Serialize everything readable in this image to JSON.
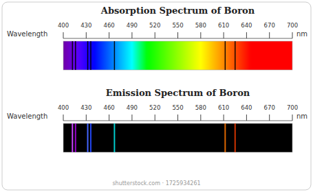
{
  "chart_data": [
    {
      "type": "spectrum",
      "title": "Absorption Spectrum of Boron",
      "xlabel": "Wavelength",
      "annotations": [
        "nm"
      ],
      "x": [
        412,
        416,
        432,
        436,
        467,
        612,
        625
      ],
      "color": "#000000",
      "xlim": [
        400,
        700
      ],
      "xticks": [
        400,
        430,
        460,
        490,
        520,
        550,
        580,
        610,
        640,
        670,
        700
      ],
      "tick_labels": "x"
    },
    {
      "type": "spectrum",
      "title": "Emission Spectrum of Boron",
      "xlabel": "Wavelength",
      "annotations": [
        "nm",
        "shutterstock.com · 1725934261"
      ],
      "x": [
        412,
        416,
        432,
        436,
        467,
        612,
        625
      ],
      "colors": [
        "#cc44ff",
        "#9900cc",
        "#4466ff",
        "#2244ee",
        "#00cccc",
        "#dd6600",
        "#cc3300"
      ],
      "xlim": [
        400,
        700
      ],
      "xticks": [
        400,
        430,
        460,
        490,
        520,
        550,
        580,
        610,
        640,
        670,
        700
      ],
      "tick_labels": "x"
    }
  ]
}
